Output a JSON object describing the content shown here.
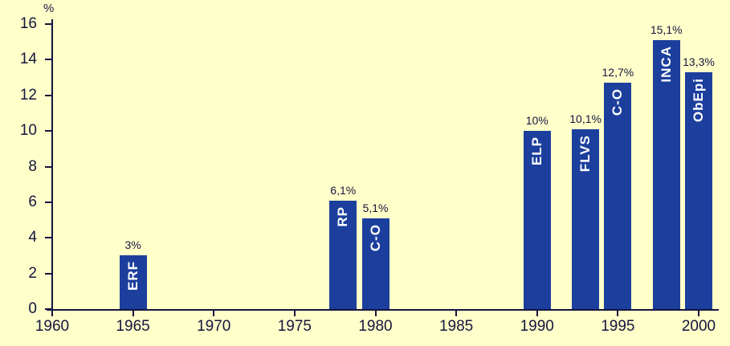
{
  "chart_data": {
    "type": "bar",
    "title": "",
    "xlabel": "",
    "ylabel": "%",
    "ylim": [
      0,
      16
    ],
    "xlim": [
      1960,
      2000
    ],
    "yticks": [
      0,
      2,
      4,
      6,
      8,
      10,
      12,
      14,
      16
    ],
    "xticks": [
      1960,
      1965,
      1970,
      1975,
      1980,
      1985,
      1990,
      1995,
      2000
    ],
    "grid": false,
    "legend": false,
    "bars": [
      {
        "label": "ERF",
        "year": 1965,
        "value": 3,
        "value_label": "3%"
      },
      {
        "label": "RP",
        "year": 1978,
        "value": 6.1,
        "value_label": "6,1%"
      },
      {
        "label": "C-O",
        "year": 1980,
        "value": 5.1,
        "value_label": "5,1%"
      },
      {
        "label": "ELP",
        "year": 1990,
        "value": 10,
        "value_label": "10%"
      },
      {
        "label": "FLVS",
        "year": 1993,
        "value": 10.1,
        "value_label": "10,1%"
      },
      {
        "label": "C-O",
        "year": 1995,
        "value": 12.7,
        "value_label": "12,7%"
      },
      {
        "label": "INCA",
        "year": 1998,
        "value": 15.1,
        "value_label": "15,1%"
      },
      {
        "label": "ObEpi",
        "year": 2000,
        "value": 13.3,
        "value_label": "13,3%"
      }
    ],
    "colors": {
      "background": "#ffffca",
      "bar": "#1c3f9d",
      "bar_text": "#ffffff",
      "axis_text": "#15153f"
    }
  }
}
